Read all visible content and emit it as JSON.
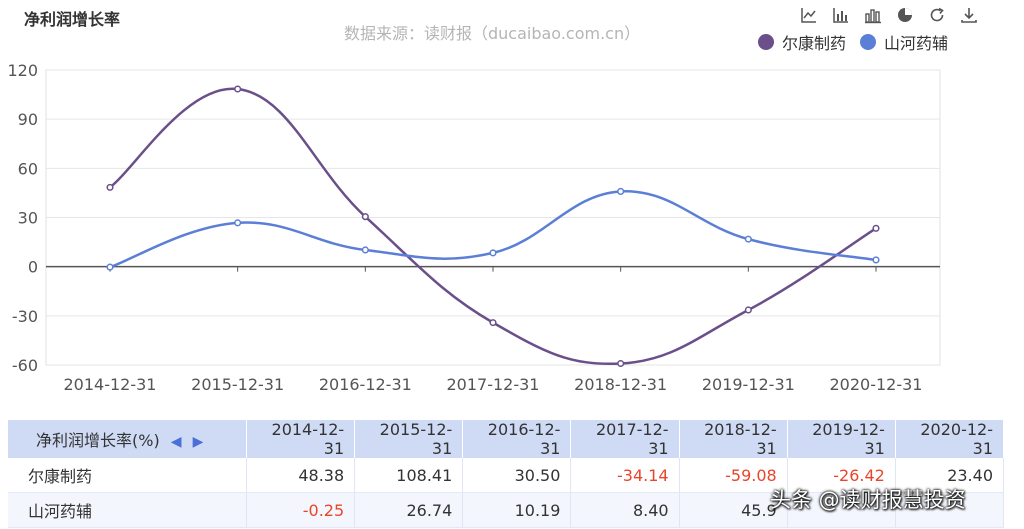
{
  "title": "净利润增长率",
  "source": "数据来源：读财报（ducaibao.com.cn）",
  "toolbar": [
    "line-chart-icon",
    "bar-chart-icon",
    "stack-icon",
    "pie-icon",
    "refresh-icon",
    "download-icon"
  ],
  "legend": [
    {
      "name": "尔康制药",
      "color": "#6a4f8a"
    },
    {
      "name": "山河药辅",
      "color": "#5b7fd6"
    }
  ],
  "chart_data": {
    "type": "line",
    "title": "净利润增长率",
    "x": [
      "2014-12-31",
      "2015-12-31",
      "2016-12-31",
      "2017-12-31",
      "2018-12-31",
      "2019-12-31",
      "2020-12-31"
    ],
    "yticks": [
      120,
      90,
      60,
      30,
      0,
      -30,
      -60
    ],
    "ylim": [
      -60,
      120
    ],
    "grid": true,
    "legend_position": "top-right",
    "series": [
      {
        "name": "尔康制药",
        "color": "#6a4f8a",
        "values": [
          48.38,
          108.41,
          30.5,
          -34.14,
          -59.08,
          -26.42,
          23.4
        ]
      },
      {
        "name": "山河药辅",
        "color": "#5b7fd6",
        "values": [
          -0.25,
          26.74,
          10.19,
          8.4,
          45.9,
          16.8,
          4.1
        ]
      }
    ]
  },
  "table": {
    "header_label": "净利润增长率(%)",
    "nav_left": "◀",
    "nav_right": "▶",
    "columns": [
      "2014-12-31",
      "2015-12-31",
      "2016-12-31",
      "2017-12-31",
      "2018-12-31",
      "2019-12-31",
      "2020-12-31"
    ],
    "rows": [
      {
        "name": "尔康制药",
        "cells": [
          "48.38",
          "108.41",
          "30.50",
          "-34.14",
          "-59.08",
          "-26.42",
          "23.40"
        ]
      },
      {
        "name": "山河药辅",
        "cells": [
          "-0.25",
          "26.74",
          "10.19",
          "8.40",
          "45.9",
          "",
          ""
        ]
      }
    ]
  },
  "watermark": "头条 @读财报慧投资"
}
